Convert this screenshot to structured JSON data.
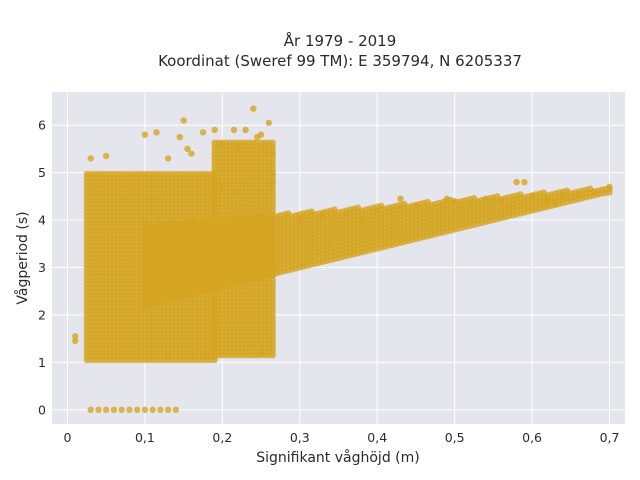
{
  "chart_data": {
    "type": "scatter",
    "title_line1": "År 1979 - 2019",
    "title_line2": "Koordinat (Sweref 99 TM): E 359794, N 6205337",
    "xlabel": "Signifikant våghöjd (m)",
    "ylabel": "Vågperiod (s)",
    "xlim": [
      -0.02,
      0.72
    ],
    "ylim": [
      -0.3,
      6.7
    ],
    "xticks": [
      0,
      0.1,
      0.2,
      0.3,
      0.4,
      0.5,
      0.6,
      0.7
    ],
    "xtick_labels": [
      "0",
      "0,1",
      "0,2",
      "0,3",
      "0,4",
      "0,5",
      "0,6",
      "0,7"
    ],
    "yticks": [
      0,
      1,
      2,
      3,
      4,
      5,
      6
    ],
    "ytick_labels": [
      "0",
      "1",
      "2",
      "3",
      "4",
      "5",
      "6"
    ],
    "grid": true,
    "background": "#e5e5ee",
    "marker_color": "#d4a520",
    "bands": [
      {
        "x_start": 0.025,
        "x_end": 0.19,
        "y_low": 1.05,
        "y_high": 5.0,
        "step": 0.005
      },
      {
        "x_start": 0.19,
        "x_end": 0.265,
        "y_low": 1.15,
        "y_high": 5.7,
        "step": 0.005
      },
      {
        "x_start": 0.1,
        "x_end": 0.7,
        "y_low_start": 2.2,
        "y_low_end": 4.6,
        "y_high_start": 3.9,
        "y_high_end": 4.7,
        "step": 0.005
      }
    ],
    "zero_row": {
      "y": 0,
      "x_start": 0.03,
      "x_end": 0.145,
      "step": 0.01
    },
    "outliers": [
      [
        0.01,
        1.55
      ],
      [
        0.01,
        1.45
      ],
      [
        0.03,
        5.3
      ],
      [
        0.05,
        5.35
      ],
      [
        0.1,
        5.8
      ],
      [
        0.115,
        5.85
      ],
      [
        0.13,
        5.3
      ],
      [
        0.145,
        5.75
      ],
      [
        0.15,
        6.1
      ],
      [
        0.155,
        5.5
      ],
      [
        0.16,
        5.4
      ],
      [
        0.175,
        5.85
      ],
      [
        0.19,
        5.9
      ],
      [
        0.2,
        5.6
      ],
      [
        0.215,
        5.9
      ],
      [
        0.22,
        5.5
      ],
      [
        0.23,
        5.9
      ],
      [
        0.24,
        6.35
      ],
      [
        0.245,
        5.75
      ],
      [
        0.25,
        5.8
      ],
      [
        0.255,
        5.45
      ],
      [
        0.26,
        6.05
      ],
      [
        0.265,
        5.4
      ],
      [
        0.265,
        4.95
      ],
      [
        0.265,
        4.8
      ],
      [
        0.245,
        4.6
      ],
      [
        0.25,
        1.2
      ],
      [
        0.235,
        1.4
      ],
      [
        0.18,
        1.15
      ],
      [
        0.13,
        1.1
      ],
      [
        0.11,
        3.1
      ],
      [
        0.12,
        2.4
      ],
      [
        0.14,
        3.1
      ],
      [
        0.16,
        3.6
      ],
      [
        0.15,
        2.8
      ],
      [
        0.2,
        4.7
      ],
      [
        0.22,
        4.6
      ],
      [
        0.4,
        4.2
      ],
      [
        0.43,
        4.45
      ],
      [
        0.45,
        4.3
      ],
      [
        0.49,
        4.45
      ],
      [
        0.5,
        4.4
      ],
      [
        0.52,
        4.3
      ],
      [
        0.54,
        4.45
      ],
      [
        0.56,
        4.4
      ],
      [
        0.57,
        4.25
      ],
      [
        0.58,
        4.8
      ],
      [
        0.59,
        4.8
      ],
      [
        0.6,
        4.5
      ],
      [
        0.62,
        4.4
      ],
      [
        0.63,
        4.35
      ],
      [
        0.64,
        4.5
      ],
      [
        0.66,
        4.55
      ],
      [
        0.68,
        4.6
      ],
      [
        0.7,
        4.7
      ],
      [
        0.3,
        4.0
      ],
      [
        0.33,
        4.1
      ],
      [
        0.36,
        4.15
      ],
      [
        0.38,
        4.0
      ]
    ]
  }
}
